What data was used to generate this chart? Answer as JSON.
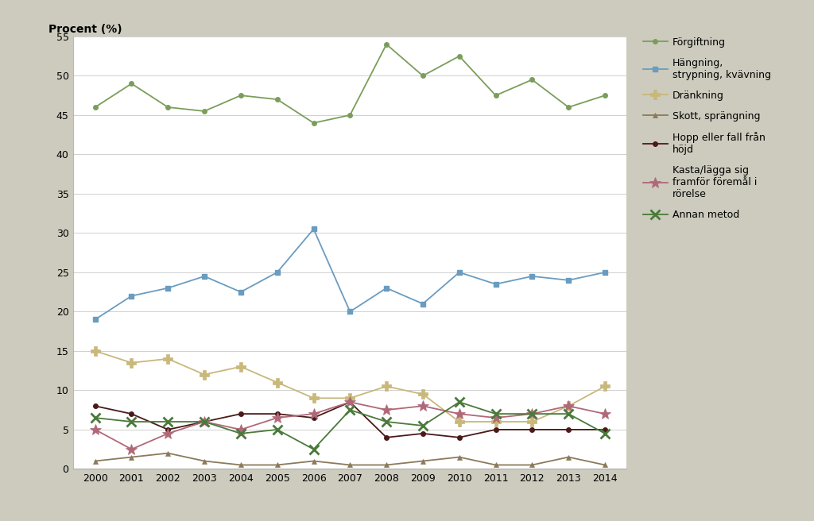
{
  "years": [
    2000,
    2001,
    2002,
    2003,
    2004,
    2005,
    2006,
    2007,
    2008,
    2009,
    2010,
    2011,
    2012,
    2013,
    2014
  ],
  "forgiftning": [
    46,
    49,
    46,
    45.5,
    47.5,
    47,
    44,
    45,
    54,
    50,
    52.5,
    47.5,
    49.5,
    46,
    47.5
  ],
  "hangning": [
    19,
    22,
    23,
    24.5,
    22.5,
    25,
    30.5,
    20,
    23,
    21,
    25,
    23.5,
    24.5,
    24,
    25
  ],
  "drankning": [
    15,
    13.5,
    14,
    12,
    13,
    11,
    9,
    9,
    10.5,
    9.5,
    6,
    6,
    6,
    8,
    10.5
  ],
  "skott": [
    1,
    1.5,
    2,
    1,
    0.5,
    0.5,
    1,
    0.5,
    0.5,
    1,
    1.5,
    0.5,
    0.5,
    1.5,
    0.5
  ],
  "hopp": [
    8,
    7,
    5,
    6,
    7,
    7,
    6.5,
    8.5,
    4,
    4.5,
    4,
    5,
    5,
    5,
    5
  ],
  "kasta": [
    5,
    2.5,
    4.5,
    6,
    5,
    6.5,
    7,
    8.5,
    7.5,
    8,
    7,
    6.5,
    7,
    8,
    7
  ],
  "annan": [
    6.5,
    6,
    6,
    6,
    4.5,
    5,
    2.5,
    7.5,
    6,
    5.5,
    8.5,
    7,
    7,
    7,
    4.5
  ],
  "series_labels": [
    "Förgiftning",
    "Hängning,\nstrypning, kvävning",
    "Dränkning",
    "Skott, sprängning",
    "Hopp eller fall från\nhöjd",
    "Kasta/lägga sig\nframför föremål i\nrörelse",
    "Annan metod"
  ],
  "line_colors": [
    "#7A9E5A",
    "#6A9CC0",
    "#C8B87A",
    "#8B7A5A",
    "#4A1A1A",
    "#B06878",
    "#4A7A3A"
  ],
  "marker_types": [
    "o",
    "s",
    "P",
    "^",
    "o",
    "*",
    "x"
  ],
  "marker_sizes": [
    4,
    5,
    9,
    5,
    4,
    8,
    7
  ],
  "linewidths": [
    1.3,
    1.3,
    1.3,
    1.3,
    1.3,
    1.3,
    1.3
  ],
  "ylabel": "Procent (%)",
  "ylim": [
    0,
    55
  ],
  "yticks": [
    0,
    5,
    10,
    15,
    20,
    25,
    30,
    35,
    40,
    45,
    50,
    55
  ],
  "background_color": "#CCCBBE",
  "plot_bg": "#FFFFFF",
  "ylabel_fontsize": 10,
  "tick_fontsize": 9,
  "legend_fontsize": 9
}
